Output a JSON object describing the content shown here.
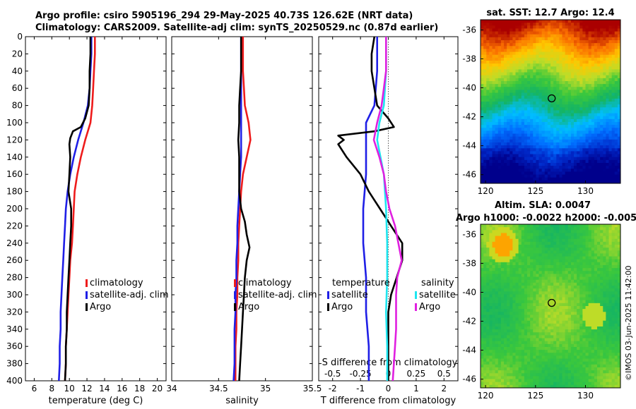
{
  "header": {
    "title_line1": "Argo profile: csiro 5905196_294 29-May-2025 40.73S 126.62E (NRT data)",
    "title_line2": "Climatology: CARS2009. Satellite-adj clim: synTS_20250529.nc (0.87d earlier)"
  },
  "watermark": "©IMOS 03-Jun-2025 11:42:00",
  "colors": {
    "climatology": "#ee1c1c",
    "satellite": "#1f1fe6",
    "argo": "#000000",
    "sal_satellite": "#1ee6f0",
    "sal_argo": "#e020e0",
    "zero_line": "#555555"
  },
  "chart_data": [
    {
      "id": "temperature",
      "type": "line",
      "xlabel": "temperature (deg C)",
      "ylabel": "",
      "xlim": [
        5,
        21
      ],
      "ylim": [
        400,
        0
      ],
      "xticks": [
        6,
        8,
        10,
        12,
        14,
        16,
        18,
        20
      ],
      "yticks": [
        0,
        20,
        40,
        60,
        80,
        100,
        120,
        140,
        160,
        180,
        200,
        220,
        240,
        260,
        280,
        300,
        320,
        340,
        360,
        380,
        400
      ],
      "legend": {
        "position": "right",
        "entries": [
          "climatology",
          "satellite-adj. clim",
          "Argo"
        ]
      },
      "series": [
        {
          "name": "climatology",
          "color": "#ee1c1c",
          "depth": [
            0,
            20,
            40,
            60,
            80,
            100,
            120,
            140,
            160,
            180,
            200,
            220,
            240,
            260,
            280,
            300,
            320,
            340,
            360,
            380,
            400
          ],
          "values": [
            12.9,
            12.9,
            12.8,
            12.7,
            12.6,
            12.4,
            11.8,
            11.3,
            10.9,
            10.6,
            10.5,
            10.4,
            10.3,
            10.1,
            10.0,
            9.9,
            9.8,
            9.7,
            9.6,
            9.6,
            9.5
          ]
        },
        {
          "name": "satellite-adj. clim",
          "color": "#1f1fe6",
          "depth": [
            0,
            20,
            40,
            60,
            80,
            100,
            120,
            140,
            160,
            180,
            200,
            220,
            240,
            260,
            280,
            300,
            320,
            340,
            360,
            380,
            400
          ],
          "values": [
            12.5,
            12.5,
            12.4,
            12.3,
            12.1,
            11.6,
            11.0,
            10.5,
            10.1,
            9.8,
            9.6,
            9.5,
            9.4,
            9.3,
            9.2,
            9.1,
            9.0,
            9.0,
            8.9,
            8.9,
            8.8
          ]
        },
        {
          "name": "Argo",
          "color": "#000000",
          "depth": [
            0,
            20,
            40,
            60,
            80,
            95,
            105,
            110,
            118,
            125,
            140,
            160,
            180,
            200,
            220,
            240,
            260,
            280,
            300,
            320,
            340,
            360,
            380,
            400
          ],
          "values": [
            12.4,
            12.4,
            12.3,
            12.3,
            12.2,
            11.8,
            11.3,
            10.4,
            10.1,
            10.0,
            10.1,
            10.0,
            9.9,
            10.2,
            10.2,
            10.1,
            10.0,
            9.9,
            9.8,
            9.7,
            9.7,
            9.6,
            9.6,
            9.5
          ]
        }
      ]
    },
    {
      "id": "salinity",
      "type": "line",
      "xlabel": "salinity",
      "ylabel": "",
      "xlim": [
        34,
        35.5
      ],
      "ylim": [
        400,
        0
      ],
      "xticks": [
        34,
        34.5,
        35,
        35.5
      ],
      "legend": {
        "position": "right",
        "entries": [
          "climatology",
          "satellite-adj. clim",
          "Argo"
        ]
      },
      "series": [
        {
          "name": "climatology",
          "color": "#ee1c1c",
          "depth": [
            0,
            20,
            40,
            60,
            80,
            100,
            120,
            140,
            160,
            180,
            200,
            220,
            240,
            260,
            280,
            300,
            320,
            340,
            360,
            380,
            400
          ],
          "values": [
            34.76,
            34.76,
            34.76,
            34.77,
            34.78,
            34.82,
            34.84,
            34.8,
            34.76,
            34.74,
            34.73,
            34.72,
            34.71,
            34.71,
            34.7,
            34.7,
            34.69,
            34.69,
            34.68,
            34.68,
            34.68
          ]
        },
        {
          "name": "satellite-adj. clim",
          "color": "#1f1fe6",
          "depth": [
            0,
            20,
            40,
            60,
            80,
            100,
            120,
            140,
            160,
            180,
            200,
            220,
            240,
            260,
            280,
            300,
            320,
            340,
            360,
            380,
            400
          ],
          "values": [
            34.74,
            34.74,
            34.74,
            34.74,
            34.74,
            34.74,
            34.74,
            34.74,
            34.73,
            34.72,
            34.71,
            34.7,
            34.7,
            34.69,
            34.69,
            34.68,
            34.68,
            34.67,
            34.67,
            34.67,
            34.66
          ]
        },
        {
          "name": "Argo",
          "color": "#000000",
          "depth": [
            0,
            20,
            40,
            60,
            80,
            100,
            120,
            140,
            160,
            180,
            200,
            215,
            230,
            245,
            260,
            280,
            300,
            320,
            340,
            360,
            380,
            400
          ],
          "values": [
            34.74,
            34.74,
            34.74,
            34.73,
            34.72,
            34.72,
            34.71,
            34.72,
            34.72,
            34.72,
            34.74,
            34.78,
            34.8,
            34.83,
            34.8,
            34.78,
            34.77,
            34.76,
            34.75,
            34.74,
            34.73,
            34.72
          ]
        }
      ]
    },
    {
      "id": "differences",
      "type": "line",
      "xlabel": "T difference from climatology",
      "x2label": "S difference from climatology",
      "xlim": [
        -2.5,
        2.5
      ],
      "ylim": [
        400,
        0
      ],
      "xticks": [
        -2,
        -1,
        0,
        1,
        2
      ],
      "x2lim": [
        -0.625,
        0.625
      ],
      "x2ticks": [
        -0.5,
        -0.25,
        0,
        0.25,
        0.5
      ],
      "legend_temperature_title": "temperature",
      "legend_salinity_title": "salinity",
      "legend": {
        "position": "bottom",
        "entries": [
          "satellite",
          "Argo",
          "satellite",
          "Argo"
        ]
      },
      "series": [
        {
          "name": "temperature satellite",
          "axis": "T",
          "color": "#1f1fe6",
          "depth": [
            0,
            40,
            80,
            100,
            120,
            160,
            200,
            240,
            280,
            320,
            360,
            400
          ],
          "values": [
            -0.4,
            -0.4,
            -0.5,
            -0.8,
            -0.8,
            -0.8,
            -0.9,
            -0.9,
            -0.8,
            -0.8,
            -0.7,
            -0.7
          ]
        },
        {
          "name": "temperature Argo",
          "axis": "T",
          "color": "#000000",
          "depth": [
            0,
            20,
            40,
            60,
            80,
            95,
            105,
            110,
            115,
            120,
            125,
            140,
            160,
            180,
            190,
            200,
            220,
            240,
            260,
            280,
            300,
            320,
            340,
            360,
            380,
            400
          ],
          "values": [
            -0.5,
            -0.6,
            -0.6,
            -0.5,
            -0.4,
            0.0,
            0.2,
            -0.5,
            -1.8,
            -1.6,
            -1.8,
            -1.5,
            -1.0,
            -0.7,
            -0.5,
            -0.3,
            0.1,
            0.5,
            0.5,
            0.3,
            0.1,
            0.0,
            0.0,
            0.0,
            0.0,
            0.0
          ]
        },
        {
          "name": "salinity satellite",
          "axis": "S",
          "color": "#1ee6f0",
          "depth": [
            0,
            40,
            80,
            100,
            120,
            160,
            200,
            240,
            280,
            320,
            360,
            400
          ],
          "values": [
            -0.02,
            -0.02,
            -0.04,
            -0.08,
            -0.1,
            -0.04,
            -0.02,
            -0.01,
            -0.01,
            -0.02,
            -0.01,
            -0.01
          ]
        },
        {
          "name": "salinity Argo",
          "axis": "S",
          "color": "#e020e0",
          "depth": [
            0,
            20,
            40,
            60,
            80,
            100,
            120,
            140,
            160,
            180,
            200,
            220,
            240,
            260,
            280,
            300,
            320,
            340,
            360,
            380,
            400
          ],
          "values": [
            -0.02,
            -0.02,
            -0.02,
            -0.04,
            -0.06,
            -0.1,
            -0.13,
            -0.08,
            -0.04,
            -0.02,
            0.01,
            0.06,
            0.09,
            0.12,
            0.08,
            0.07,
            0.07,
            0.07,
            0.06,
            0.05,
            0.04
          ]
        }
      ]
    },
    {
      "id": "sst_map",
      "type": "heatmap",
      "title": "sat. SST: 12.7 Argo: 12.4",
      "xlim": [
        119.5,
        133.5
      ],
      "ylim": [
        -46.6,
        -35.3
      ],
      "xticks": [
        120,
        125,
        130
      ],
      "yticks": [
        -36,
        -38,
        -40,
        -42,
        -44,
        -46
      ],
      "marker": {
        "lon": 126.62,
        "lat": -40.73
      }
    },
    {
      "id": "sla_map",
      "type": "heatmap",
      "title": "Altim. SLA: 0.0047",
      "subtitle": "Argo h1000: -0.0022 h2000: -0.005",
      "xlim": [
        119.5,
        133.5
      ],
      "ylim": [
        -46.6,
        -35.3
      ],
      "xticks": [
        120,
        125,
        130
      ],
      "yticks": [
        -36,
        -38,
        -40,
        -42,
        -44,
        -46
      ],
      "marker": {
        "lon": 126.62,
        "lat": -40.73
      }
    }
  ]
}
